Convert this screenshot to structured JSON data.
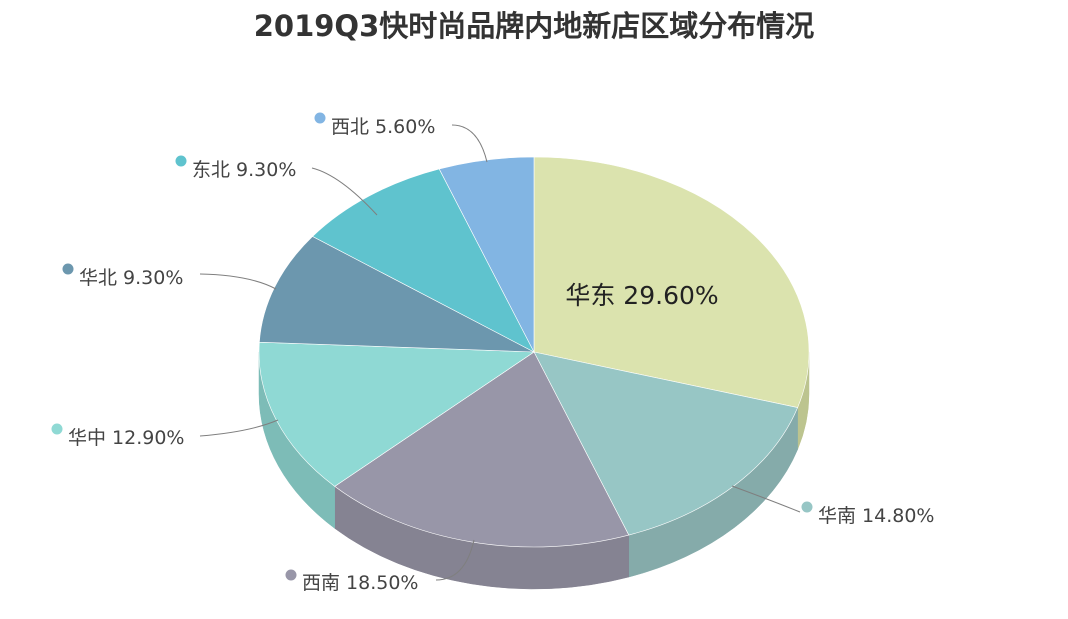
{
  "chart_data": {
    "type": "pie",
    "title": "2019Q3快时尚品牌内地新店区域分布情况",
    "slices": [
      {
        "name": "华东",
        "value": 29.6,
        "label": "华东 29.60%",
        "color": "#dbe3ae",
        "side": "#bcc48f",
        "inside": true
      },
      {
        "name": "华南",
        "value": 14.8,
        "label": "华南 14.80%",
        "color": "#97c6c5",
        "side": "#85abaa",
        "inside": false
      },
      {
        "name": "西南",
        "value": 18.5,
        "label": "西南 18.50%",
        "color": "#9896a8",
        "side": "#858392",
        "inside": false
      },
      {
        "name": "华中",
        "value": 12.9,
        "label": "华中 12.90%",
        "color": "#8fd9d4",
        "side": "#7dbcb7",
        "inside": false
      },
      {
        "name": "华北",
        "value": 9.3,
        "label": "华北 9.30%",
        "color": "#6c97ae",
        "side": "#5e8398",
        "inside": false
      },
      {
        "name": "东北",
        "value": 9.3,
        "label": "东北 9.30%",
        "color": "#5fc3ce",
        "side": "#52a8b2",
        "inside": false
      },
      {
        "name": "西北",
        "value": 5.6,
        "label": "西北 5.60%",
        "color": "#82b5e3",
        "side": "#719dc5",
        "inside": false
      }
    ],
    "start": "12 o'clock",
    "direction": "clockwise",
    "style": "3d-tilted",
    "legend": "none"
  }
}
